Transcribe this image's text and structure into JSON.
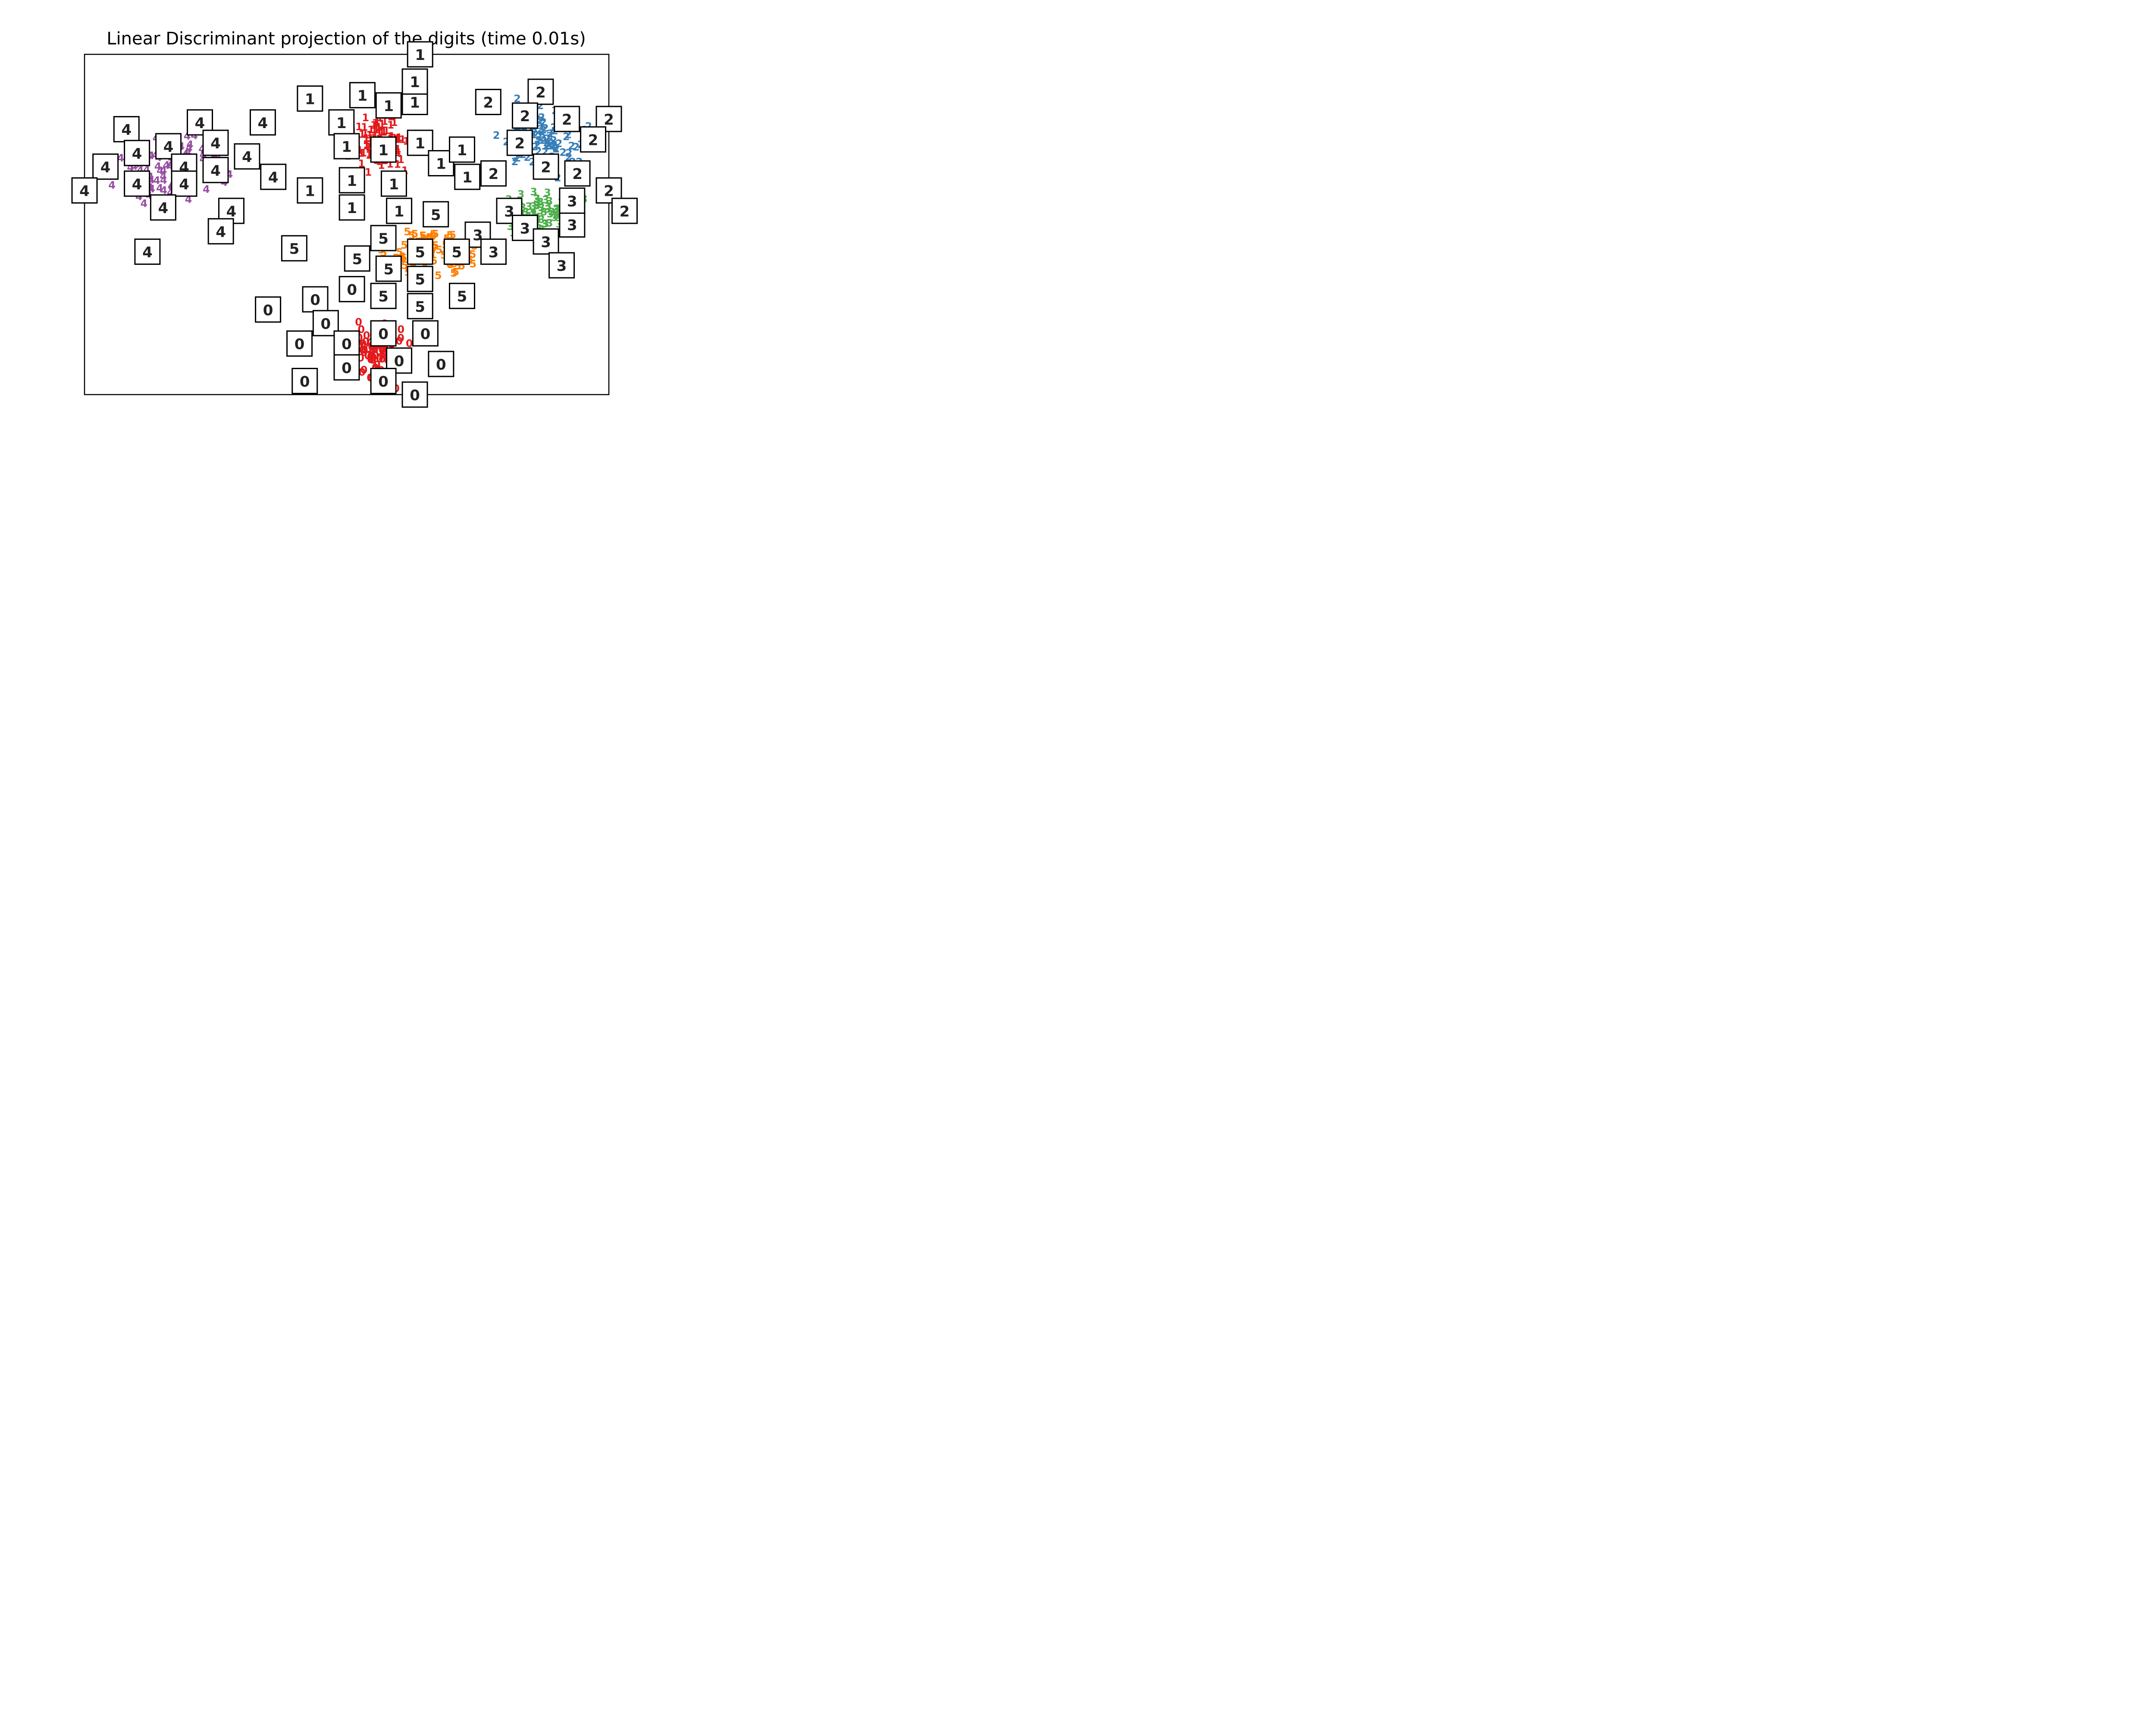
{
  "chart_data": {
    "type": "scatter",
    "title": "Linear Discriminant projection of the digits (time 0.01s)",
    "xlabel": "",
    "ylabel": "",
    "xlim": [
      0,
      1
    ],
    "ylim": [
      0,
      1
    ],
    "axes_ticks_visible": false,
    "grid": false,
    "colors": {
      "0": "#e31a1c",
      "1": "#e31a1c",
      "2": "#377eb8",
      "3": "#4daf4a",
      "4": "#984ea3",
      "5": "#ff7f00"
    },
    "series": [
      {
        "label": "0",
        "center": [
          0.56,
          0.12
        ],
        "spread": [
          0.09,
          0.14
        ],
        "count": 90,
        "thumbnails": [
          [
            0.35,
            0.25
          ],
          [
            0.44,
            0.28
          ],
          [
            0.46,
            0.21
          ],
          [
            0.41,
            0.15
          ],
          [
            0.5,
            0.15
          ],
          [
            0.51,
            0.31
          ],
          [
            0.57,
            0.18
          ],
          [
            0.65,
            0.18
          ],
          [
            0.6,
            0.1
          ],
          [
            0.68,
            0.09
          ],
          [
            0.63,
            0.0
          ],
          [
            0.57,
            0.04
          ],
          [
            0.5,
            0.08
          ],
          [
            0.42,
            0.04
          ]
        ]
      },
      {
        "label": "1",
        "center": [
          0.57,
          0.74
        ],
        "spread": [
          0.09,
          0.13
        ],
        "count": 90,
        "thumbnails": [
          [
            0.43,
            0.87
          ],
          [
            0.53,
            0.88
          ],
          [
            0.58,
            0.85
          ],
          [
            0.49,
            0.8
          ],
          [
            0.63,
            0.86
          ],
          [
            0.63,
            0.92
          ],
          [
            0.64,
            1.0
          ],
          [
            0.5,
            0.73
          ],
          [
            0.57,
            0.72
          ],
          [
            0.64,
            0.74
          ],
          [
            0.51,
            0.63
          ],
          [
            0.43,
            0.6
          ],
          [
            0.59,
            0.62
          ],
          [
            0.51,
            0.55
          ],
          [
            0.6,
            0.54
          ],
          [
            0.68,
            0.68
          ],
          [
            0.73,
            0.64
          ],
          [
            0.72,
            0.72
          ]
        ]
      },
      {
        "label": "2",
        "center": [
          0.88,
          0.75
        ],
        "spread": [
          0.13,
          0.16
        ],
        "count": 90,
        "thumbnails": [
          [
            0.77,
            0.86
          ],
          [
            0.87,
            0.89
          ],
          [
            0.84,
            0.82
          ],
          [
            0.92,
            0.81
          ],
          [
            0.83,
            0.74
          ],
          [
            1.0,
            0.81
          ],
          [
            0.97,
            0.75
          ],
          [
            0.78,
            0.65
          ],
          [
            0.88,
            0.67
          ],
          [
            0.94,
            0.65
          ],
          [
            1.0,
            0.6
          ],
          [
            1.03,
            0.54
          ]
        ]
      },
      {
        "label": "3",
        "center": [
          0.86,
          0.52
        ],
        "spread": [
          0.13,
          0.12
        ],
        "count": 80,
        "thumbnails": [
          [
            0.75,
            0.47
          ],
          [
            0.81,
            0.54
          ],
          [
            0.84,
            0.49
          ],
          [
            0.93,
            0.5
          ],
          [
            0.93,
            0.57
          ],
          [
            0.88,
            0.45
          ],
          [
            0.91,
            0.38
          ],
          [
            0.78,
            0.42
          ]
        ]
      },
      {
        "label": "4",
        "center": [
          0.16,
          0.67
        ],
        "spread": [
          0.16,
          0.16
        ],
        "count": 90,
        "thumbnails": [
          [
            0.08,
            0.78
          ],
          [
            0.22,
            0.8
          ],
          [
            0.34,
            0.8
          ],
          [
            0.04,
            0.67
          ],
          [
            0.1,
            0.71
          ],
          [
            0.16,
            0.73
          ],
          [
            0.19,
            0.67
          ],
          [
            0.25,
            0.74
          ],
          [
            0.31,
            0.7
          ],
          [
            0.1,
            0.62
          ],
          [
            0.19,
            0.62
          ],
          [
            0.25,
            0.66
          ],
          [
            0.36,
            0.64
          ],
          [
            0.0,
            0.6
          ],
          [
            0.15,
            0.55
          ],
          [
            0.28,
            0.54
          ],
          [
            0.26,
            0.48
          ],
          [
            0.12,
            0.42
          ]
        ]
      },
      {
        "label": "5",
        "center": [
          0.66,
          0.42
        ],
        "spread": [
          0.13,
          0.13
        ],
        "count": 80,
        "thumbnails": [
          [
            0.67,
            0.53
          ],
          [
            0.57,
            0.46
          ],
          [
            0.64,
            0.42
          ],
          [
            0.71,
            0.42
          ],
          [
            0.52,
            0.4
          ],
          [
            0.58,
            0.37
          ],
          [
            0.64,
            0.34
          ],
          [
            0.4,
            0.43
          ],
          [
            0.57,
            0.29
          ],
          [
            0.64,
            0.26
          ],
          [
            0.72,
            0.29
          ]
        ]
      }
    ]
  }
}
